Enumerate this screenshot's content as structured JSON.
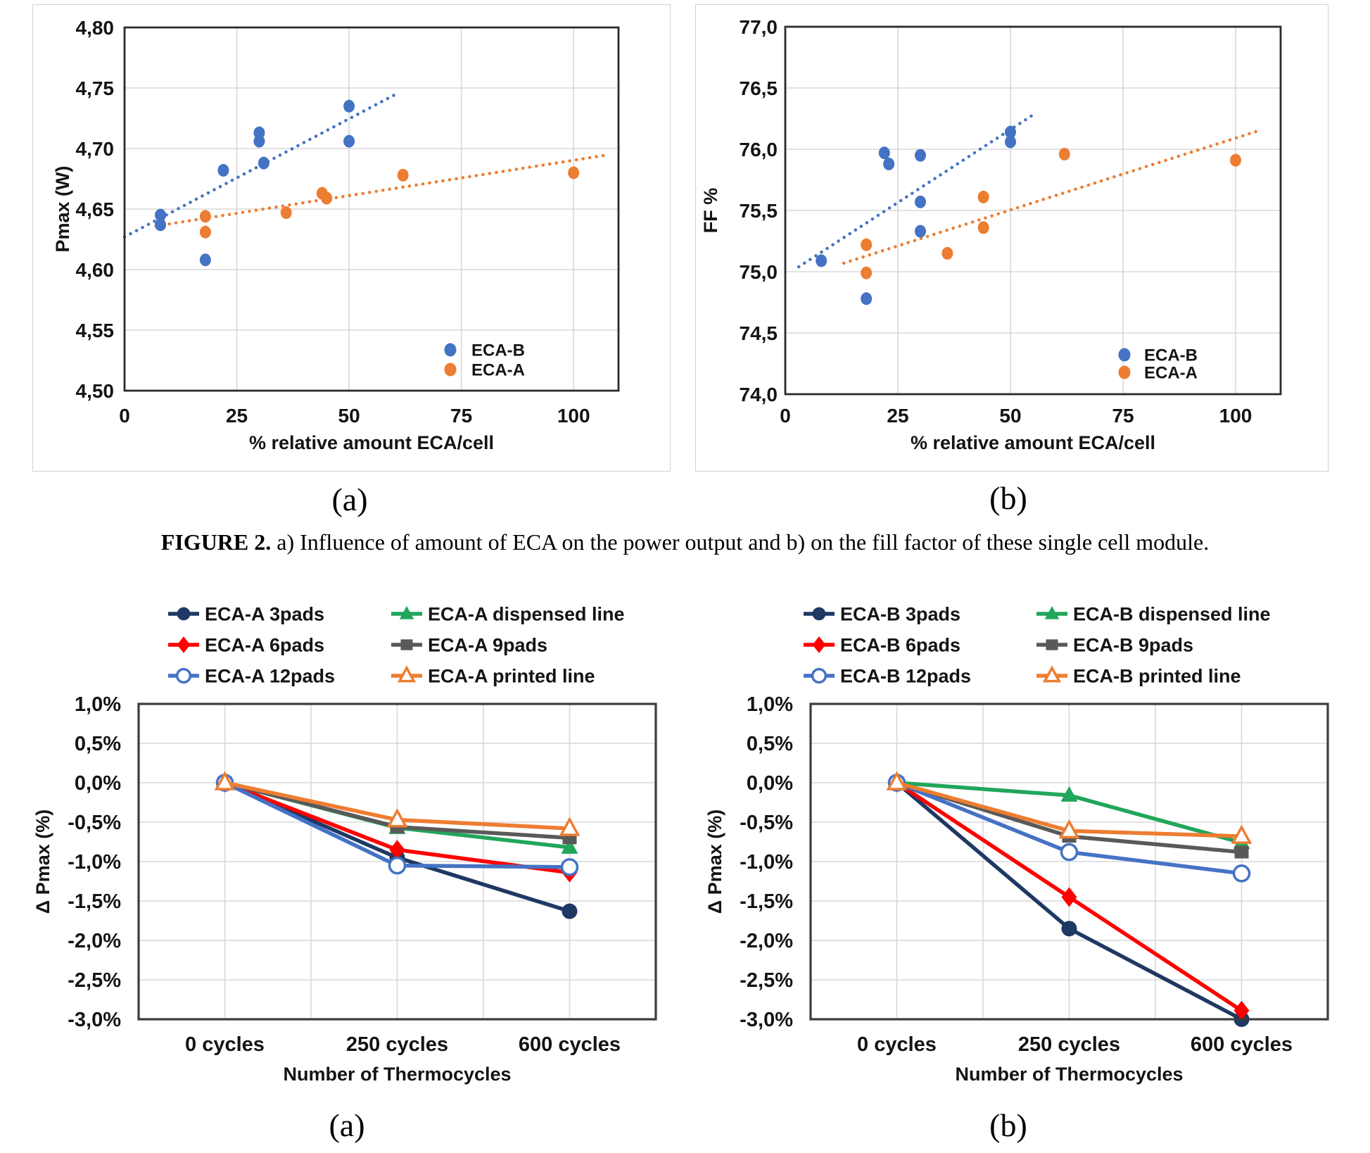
{
  "figure": {
    "caption_bold": "FIGURE 2.",
    "caption_text": " a) Influence of amount of ECA on the power output and b) on the fill factor of these single cell module.",
    "panel_label_a_top": "(a)",
    "panel_label_b_top": "(b)",
    "panel_label_a_bottom": "(a)",
    "panel_label_b_bottom": "(b)"
  },
  "colors": {
    "eca_b_blue": "#4472C4",
    "eca_a_orange": "#ED7D31",
    "navy": "#1F3864",
    "red": "#FF0000",
    "green": "#21A65A",
    "gray": "#595959",
    "light_blue": "#4472C4"
  },
  "chart_data": [
    {
      "id": "fig2a",
      "type": "scatter",
      "panel": "(a)",
      "xlabel": "% relative amount ECA/cell",
      "ylabel": "Pmax (W)",
      "xlim": [
        0,
        110
      ],
      "ylim": [
        4.5,
        4.8
      ],
      "xticks": {
        "values": [
          0,
          25,
          50,
          75,
          100
        ],
        "labels": [
          "0",
          "25",
          "50",
          "75",
          "100"
        ]
      },
      "yticks": {
        "values": [
          4.8,
          4.75,
          4.7,
          4.65,
          4.6,
          4.55,
          4.5
        ],
        "labels": [
          "4,80",
          "4,75",
          "4,70",
          "4,65",
          "4,60",
          "4,55",
          "4,50"
        ]
      },
      "grid": true,
      "legend_position": "inside-bottom-right",
      "series": [
        {
          "name": "ECA-B",
          "color": "#4472C4",
          "marker": "circle",
          "points": [
            [
              8,
              4.645
            ],
            [
              8,
              4.637
            ],
            [
              18,
              4.608
            ],
            [
              22,
              4.682
            ],
            [
              30,
              4.713
            ],
            [
              30,
              4.706
            ],
            [
              31,
              4.688
            ],
            [
              50,
              4.735
            ],
            [
              50,
              4.706
            ]
          ],
          "trendline": {
            "x1": 0,
            "y1": 4.627,
            "x2": 61,
            "y2": 4.746,
            "style": "dotted"
          }
        },
        {
          "name": "ECA-A",
          "color": "#ED7D31",
          "marker": "circle",
          "points": [
            [
              18,
              4.644
            ],
            [
              18,
              4.631
            ],
            [
              36,
              4.647
            ],
            [
              44,
              4.663
            ],
            [
              45,
              4.659
            ],
            [
              62,
              4.678
            ],
            [
              100,
              4.68
            ]
          ],
          "trendline": {
            "x1": 7,
            "y1": 4.636,
            "x2": 108,
            "y2": 4.695,
            "style": "dotted"
          }
        }
      ]
    },
    {
      "id": "fig2b",
      "type": "scatter",
      "panel": "(b)",
      "xlabel": "% relative amount ECA/cell",
      "ylabel": "FF %",
      "xlim": [
        0,
        110
      ],
      "ylim": [
        74.0,
        77.0
      ],
      "xticks": {
        "values": [
          0,
          25,
          50,
          75,
          100
        ],
        "labels": [
          "0",
          "25",
          "50",
          "75",
          "100"
        ]
      },
      "yticks": {
        "values": [
          77.0,
          76.5,
          76.0,
          75.5,
          75.0,
          74.5,
          74.0
        ],
        "labels": [
          "77,0",
          "76,5",
          "76,0",
          "75,5",
          "75,0",
          "74,5",
          "74,0"
        ]
      },
      "grid": true,
      "legend_position": "inside-bottom-right",
      "series": [
        {
          "name": "ECA-B",
          "color": "#4472C4",
          "marker": "circle",
          "points": [
            [
              8,
              75.09
            ],
            [
              18,
              74.78
            ],
            [
              22,
              75.97
            ],
            [
              23,
              75.88
            ],
            [
              30,
              75.95
            ],
            [
              30,
              75.57
            ],
            [
              30,
              75.33
            ],
            [
              50,
              76.14
            ],
            [
              50,
              76.06
            ]
          ],
          "trendline": {
            "x1": 3,
            "y1": 75.04,
            "x2": 55,
            "y2": 76.28,
            "style": "dotted"
          }
        },
        {
          "name": "ECA-A",
          "color": "#ED7D31",
          "marker": "circle",
          "points": [
            [
              18,
              75.22
            ],
            [
              18,
              74.99
            ],
            [
              36,
              75.15
            ],
            [
              44,
              75.61
            ],
            [
              44,
              75.36
            ],
            [
              62,
              75.96
            ],
            [
              100,
              75.91
            ]
          ],
          "trendline": {
            "x1": 13,
            "y1": 75.07,
            "x2": 105,
            "y2": 76.15,
            "style": "dotted"
          }
        }
      ]
    },
    {
      "id": "fig3a",
      "type": "line",
      "panel": "(a)",
      "xlabel": "Number of Thermocycles",
      "ylabel": "Δ Pmax (%)",
      "categories": [
        "0 cycles",
        "250 cycles",
        "600 cycles"
      ],
      "ylim": [
        -3.0,
        1.0
      ],
      "yticks": {
        "values": [
          1.0,
          0.5,
          0.0,
          -0.5,
          -1.0,
          -1.5,
          -2.0,
          -2.5,
          -3.0
        ],
        "labels": [
          "1,0%",
          "0,5%",
          "0,0%",
          "-0,5%",
          "-1,0%",
          "-1,5%",
          "-2,0%",
          "-2,5%",
          "-3,0%"
        ]
      },
      "grid": true,
      "legend_position": "above",
      "series": [
        {
          "name": "ECA-A 3pads",
          "color": "#1F3864",
          "marker": "circle",
          "open": false,
          "values": [
            0,
            -0.95,
            -1.63
          ]
        },
        {
          "name": "ECA-A  dispensed line",
          "color": "#21A65A",
          "marker": "triangle",
          "open": false,
          "values": [
            0,
            -0.57,
            -0.82
          ]
        },
        {
          "name": "ECA-A 6pads",
          "color": "#FF0000",
          "marker": "diamond",
          "open": false,
          "values": [
            0,
            -0.85,
            -1.14
          ]
        },
        {
          "name": "ECA-A 9pads",
          "color": "#595959",
          "marker": "square",
          "open": false,
          "values": [
            0,
            -0.56,
            -0.7
          ]
        },
        {
          "name": "ECA-A 12pads",
          "color": "#4472C4",
          "marker": "circle",
          "open": true,
          "values": [
            0,
            -1.05,
            -1.07
          ]
        },
        {
          "name": "ECA-A  printed line",
          "color": "#ED7D31",
          "marker": "triangle",
          "open": true,
          "values": [
            0,
            -0.47,
            -0.58
          ]
        }
      ]
    },
    {
      "id": "fig3b",
      "type": "line",
      "panel": "(b)",
      "xlabel": "Number of Thermocycles",
      "ylabel": "Δ Pmax (%)",
      "categories": [
        "0 cycles",
        "250 cycles",
        "600 cycles"
      ],
      "ylim": [
        -3.0,
        1.0
      ],
      "yticks": {
        "values": [
          1.0,
          0.5,
          0.0,
          -0.5,
          -1.0,
          -1.5,
          -2.0,
          -2.5,
          -3.0
        ],
        "labels": [
          "1,0%",
          "0,5%",
          "0,0%",
          "-0,5%",
          "-1,0%",
          "-1,5%",
          "-2,0%",
          "-2,5%",
          "-3,0%"
        ]
      },
      "grid": true,
      "legend_position": "above",
      "series": [
        {
          "name": "ECA-B 3pads",
          "color": "#1F3864",
          "marker": "circle",
          "open": false,
          "values": [
            0,
            -1.85,
            -3.0
          ]
        },
        {
          "name": "ECA-B  dispensed line",
          "color": "#21A65A",
          "marker": "triangle",
          "open": false,
          "values": [
            0,
            -0.16,
            -0.76
          ]
        },
        {
          "name": "ECA-B 6pads",
          "color": "#FF0000",
          "marker": "diamond",
          "open": false,
          "values": [
            0,
            -1.45,
            -2.89
          ]
        },
        {
          "name": "ECA-B 9pads",
          "color": "#595959",
          "marker": "square",
          "open": false,
          "values": [
            0,
            -0.68,
            -0.88
          ]
        },
        {
          "name": "ECA-B 12pads",
          "color": "#4472C4",
          "marker": "circle",
          "open": true,
          "values": [
            0,
            -0.88,
            -1.15
          ]
        },
        {
          "name": "ECA-B printed line",
          "color": "#ED7D31",
          "marker": "triangle",
          "open": true,
          "values": [
            0,
            -0.61,
            -0.68
          ]
        }
      ]
    }
  ]
}
